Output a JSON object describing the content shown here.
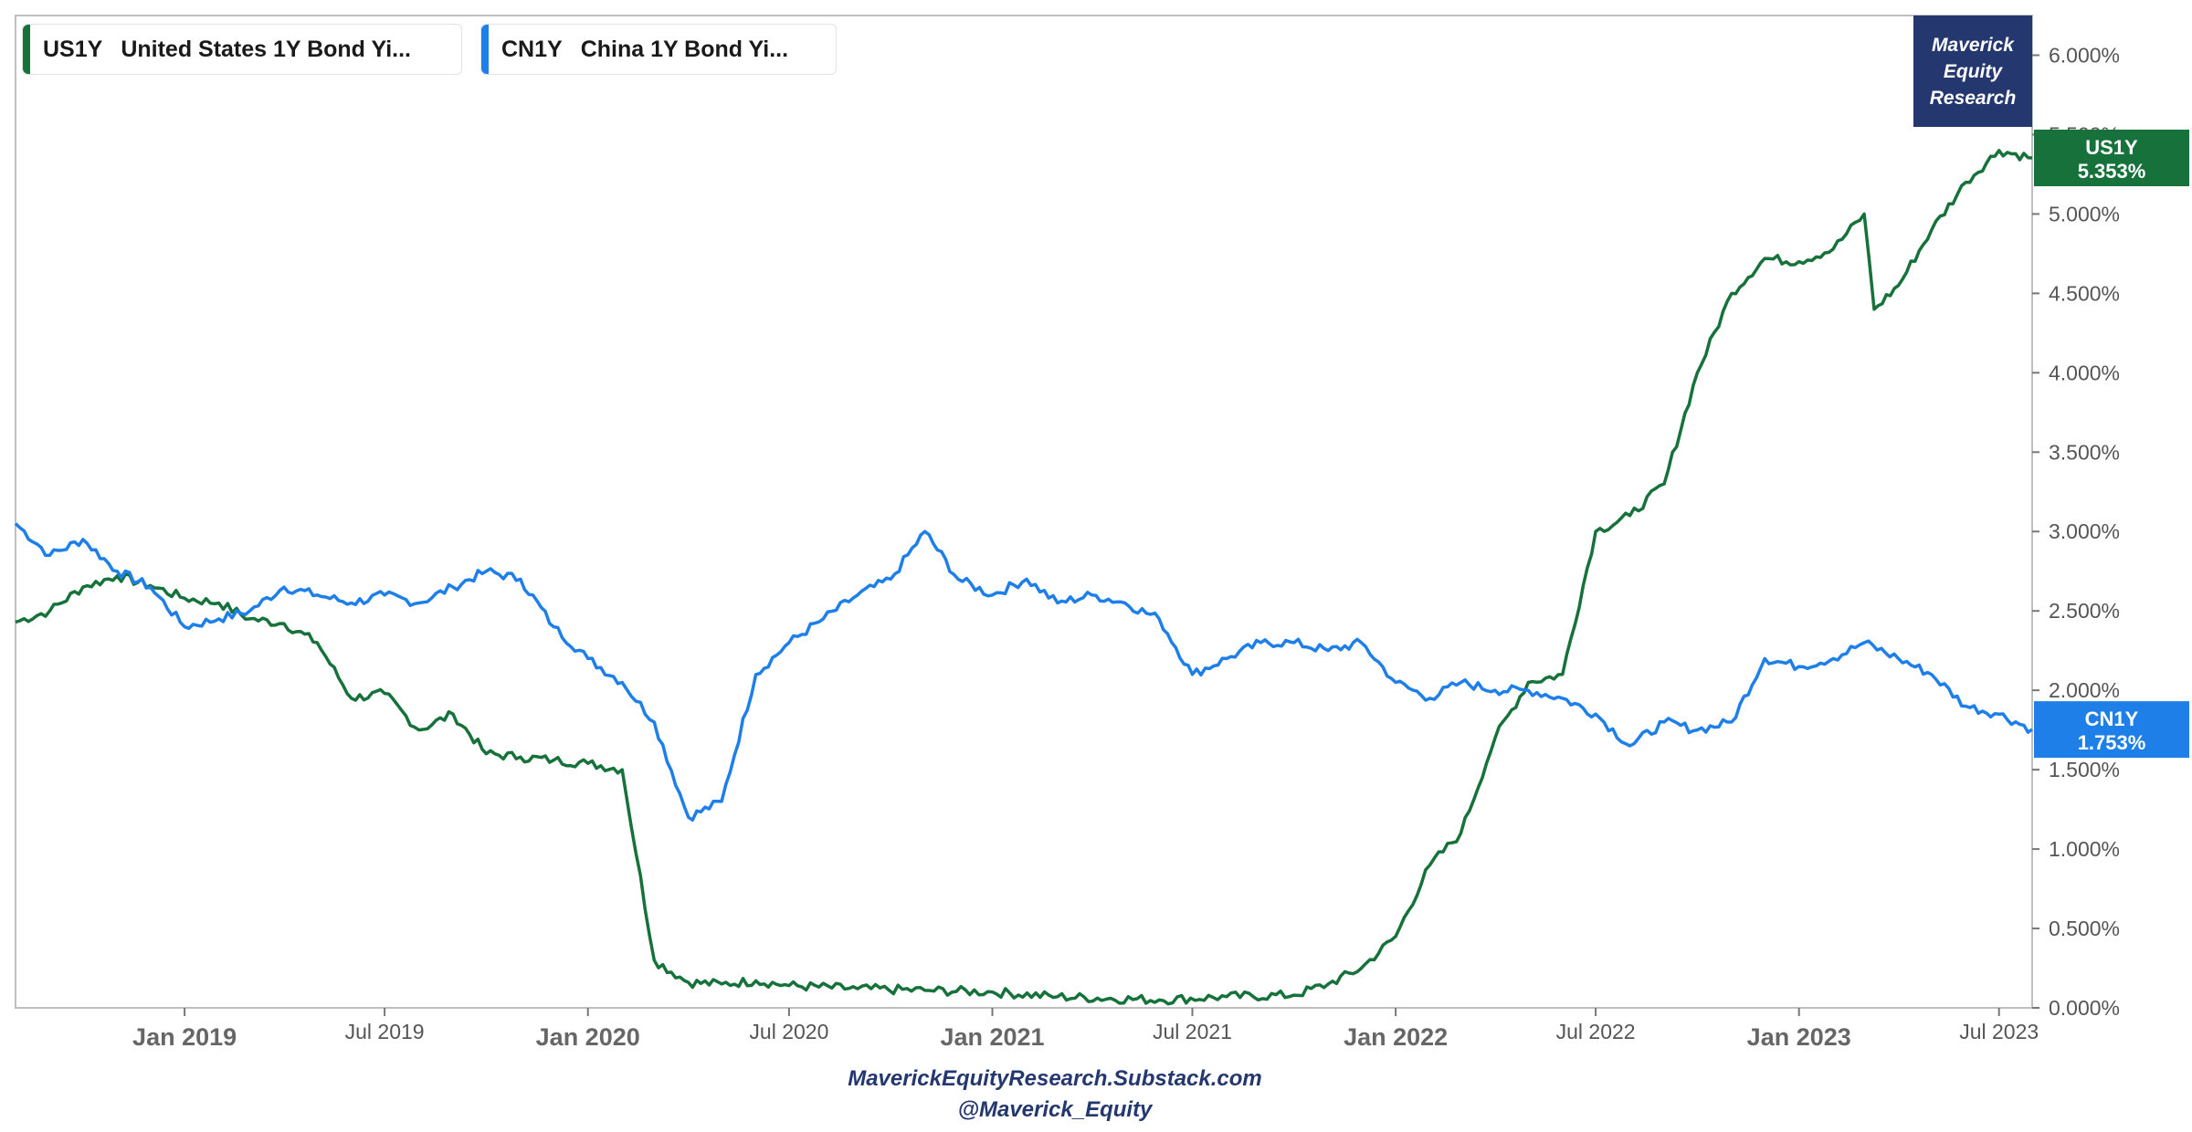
{
  "chart_data": {
    "type": "line",
    "title": "",
    "xlabel": "",
    "ylabel": "",
    "x_range": [
      "2018-08-01",
      "2023-07-31"
    ],
    "ylim": [
      0,
      6.25
    ],
    "y_ticks": [
      0,
      0.5,
      1,
      1.5,
      2,
      2.5,
      3,
      3.5,
      4,
      4.5,
      5,
      5.5,
      6
    ],
    "y_tick_labels": [
      "0.000%",
      "0.500%",
      "1.000%",
      "1.500%",
      "2.000%",
      "2.500%",
      "3.000%",
      "3.500%",
      "4.000%",
      "4.500%",
      "5.000%",
      "5.500%",
      "6.000%"
    ],
    "x_ticks": [
      {
        "date": "2019-01-01",
        "label": "Jan 2019",
        "major": true
      },
      {
        "date": "2019-07-01",
        "label": "Jul 2019",
        "major": false
      },
      {
        "date": "2020-01-01",
        "label": "Jan 2020",
        "major": true
      },
      {
        "date": "2020-07-01",
        "label": "Jul 2020",
        "major": false
      },
      {
        "date": "2021-01-01",
        "label": "Jan 2021",
        "major": true
      },
      {
        "date": "2021-07-01",
        "label": "Jul 2021",
        "major": false
      },
      {
        "date": "2022-01-01",
        "label": "Jan 2022",
        "major": true
      },
      {
        "date": "2022-07-01",
        "label": "Jul 2022",
        "major": false
      },
      {
        "date": "2023-01-01",
        "label": "Jan 2023",
        "major": true
      },
      {
        "date": "2023-07-01",
        "label": "Jul 2023",
        "major": false
      }
    ],
    "grid": false,
    "legend_position": "top-left",
    "series": [
      {
        "name": "US1Y",
        "color": "#16723a",
        "last_value_label": "5.353%",
        "points": [
          [
            "2018-08-01",
            2.43
          ],
          [
            "2018-09-01",
            2.5
          ],
          [
            "2018-10-01",
            2.65
          ],
          [
            "2018-11-01",
            2.72
          ],
          [
            "2018-12-01",
            2.66
          ],
          [
            "2019-01-01",
            2.58
          ],
          [
            "2019-02-01",
            2.55
          ],
          [
            "2019-03-01",
            2.45
          ],
          [
            "2019-04-01",
            2.42
          ],
          [
            "2019-05-01",
            2.3
          ],
          [
            "2019-06-01",
            1.95
          ],
          [
            "2019-07-01",
            1.98
          ],
          [
            "2019-08-01",
            1.75
          ],
          [
            "2019-09-01",
            1.85
          ],
          [
            "2019-10-01",
            1.6
          ],
          [
            "2019-11-01",
            1.58
          ],
          [
            "2019-12-01",
            1.56
          ],
          [
            "2020-01-01",
            1.54
          ],
          [
            "2020-02-01",
            1.5
          ],
          [
            "2020-03-01",
            0.3
          ],
          [
            "2020-04-01",
            0.16
          ],
          [
            "2020-05-01",
            0.15
          ],
          [
            "2020-06-01",
            0.17
          ],
          [
            "2020-07-01",
            0.14
          ],
          [
            "2020-09-01",
            0.12
          ],
          [
            "2020-11-01",
            0.11
          ],
          [
            "2021-01-01",
            0.1
          ],
          [
            "2021-03-01",
            0.07
          ],
          [
            "2021-06-01",
            0.05
          ],
          [
            "2021-08-01",
            0.07
          ],
          [
            "2021-10-01",
            0.08
          ],
          [
            "2021-11-01",
            0.15
          ],
          [
            "2021-12-01",
            0.25
          ],
          [
            "2022-01-01",
            0.45
          ],
          [
            "2022-02-01",
            0.9
          ],
          [
            "2022-03-01",
            1.1
          ],
          [
            "2022-04-01",
            1.7
          ],
          [
            "2022-05-01",
            2.05
          ],
          [
            "2022-06-01",
            2.1
          ],
          [
            "2022-07-01",
            3.0
          ],
          [
            "2022-08-01",
            3.1
          ],
          [
            "2022-09-01",
            3.3
          ],
          [
            "2022-10-01",
            4.0
          ],
          [
            "2022-11-01",
            4.5
          ],
          [
            "2022-12-01",
            4.72
          ],
          [
            "2023-01-01",
            4.7
          ],
          [
            "2023-02-01",
            4.78
          ],
          [
            "2023-03-01",
            5.0
          ],
          [
            "2023-03-10",
            4.4
          ],
          [
            "2023-04-01",
            4.55
          ],
          [
            "2023-05-01",
            4.9
          ],
          [
            "2023-06-01",
            5.2
          ],
          [
            "2023-07-01",
            5.4
          ],
          [
            "2023-07-31",
            5.353
          ]
        ]
      },
      {
        "name": "CN1Y",
        "color": "#1e7fe8",
        "last_value_label": "1.753%",
        "points": [
          [
            "2018-08-01",
            3.05
          ],
          [
            "2018-09-01",
            2.85
          ],
          [
            "2018-10-01",
            2.95
          ],
          [
            "2018-11-01",
            2.75
          ],
          [
            "2018-12-01",
            2.65
          ],
          [
            "2019-01-01",
            2.4
          ],
          [
            "2019-02-01",
            2.45
          ],
          [
            "2019-03-01",
            2.5
          ],
          [
            "2019-04-01",
            2.65
          ],
          [
            "2019-05-01",
            2.6
          ],
          [
            "2019-06-01",
            2.55
          ],
          [
            "2019-07-01",
            2.6
          ],
          [
            "2019-08-01",
            2.55
          ],
          [
            "2019-09-01",
            2.65
          ],
          [
            "2019-10-01",
            2.75
          ],
          [
            "2019-11-01",
            2.7
          ],
          [
            "2019-12-01",
            2.4
          ],
          [
            "2020-01-01",
            2.2
          ],
          [
            "2020-02-01",
            2.05
          ],
          [
            "2020-03-01",
            1.8
          ],
          [
            "2020-04-01",
            1.2
          ],
          [
            "2020-05-01",
            1.3
          ],
          [
            "2020-06-01",
            2.1
          ],
          [
            "2020-07-01",
            2.3
          ],
          [
            "2020-08-01",
            2.45
          ],
          [
            "2020-09-01",
            2.6
          ],
          [
            "2020-10-01",
            2.7
          ],
          [
            "2020-11-01",
            3.0
          ],
          [
            "2020-12-01",
            2.7
          ],
          [
            "2021-01-01",
            2.6
          ],
          [
            "2021-02-01",
            2.7
          ],
          [
            "2021-03-01",
            2.55
          ],
          [
            "2021-04-01",
            2.6
          ],
          [
            "2021-05-01",
            2.55
          ],
          [
            "2021-06-01",
            2.45
          ],
          [
            "2021-07-01",
            2.1
          ],
          [
            "2021-08-01",
            2.2
          ],
          [
            "2021-09-01",
            2.3
          ],
          [
            "2021-10-01",
            2.3
          ],
          [
            "2021-11-01",
            2.25
          ],
          [
            "2021-12-01",
            2.3
          ],
          [
            "2022-01-01",
            2.05
          ],
          [
            "2022-02-01",
            1.95
          ],
          [
            "2022-03-01",
            2.05
          ],
          [
            "2022-04-01",
            2.0
          ],
          [
            "2022-05-01",
            2.0
          ],
          [
            "2022-06-01",
            1.95
          ],
          [
            "2022-07-01",
            1.85
          ],
          [
            "2022-08-01",
            1.65
          ],
          [
            "2022-09-01",
            1.8
          ],
          [
            "2022-10-01",
            1.75
          ],
          [
            "2022-11-01",
            1.8
          ],
          [
            "2022-12-01",
            2.2
          ],
          [
            "2023-01-01",
            2.15
          ],
          [
            "2023-02-01",
            2.2
          ],
          [
            "2023-03-01",
            2.3
          ],
          [
            "2023-04-01",
            2.2
          ],
          [
            "2023-05-01",
            2.1
          ],
          [
            "2023-06-01",
            1.9
          ],
          [
            "2023-07-01",
            1.85
          ],
          [
            "2023-07-31",
            1.753
          ]
        ]
      }
    ]
  },
  "legend": [
    {
      "ticker": "US1Y",
      "label": "United States 1Y Bond Yi...",
      "color": "#16723a"
    },
    {
      "ticker": "CN1Y",
      "label": "China 1Y Bond Yi...",
      "color": "#1e7fe8"
    }
  ],
  "brand": {
    "line1": "Maverick",
    "line2": "Equity",
    "line3": "Research",
    "background": "#24386f"
  },
  "footer": {
    "line1": "MaverickEquityResearch.Substack.com",
    "line2": "@Maverick_Equity"
  }
}
